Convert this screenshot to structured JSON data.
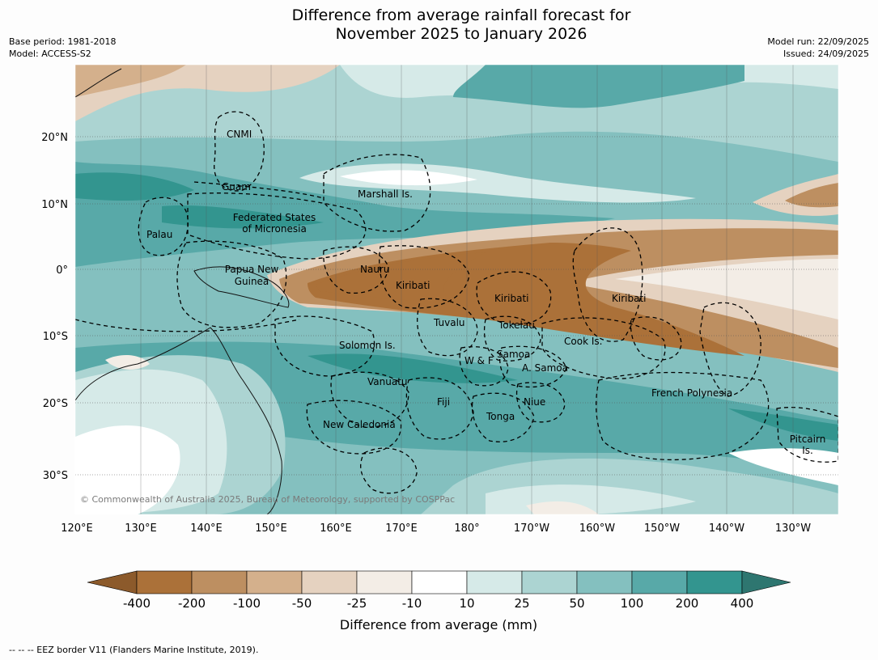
{
  "header": {
    "title_line1": "Difference from average rainfall forecast for",
    "title_line2": "November 2025 to January 2026",
    "base_period": "Base period: 1981-2018",
    "model": "Model: ACCESS-S2",
    "model_run": "Model run: 22/09/2025",
    "issued": "Issued: 24/09/2025"
  },
  "map": {
    "lon_ticks": [
      "120°E",
      "130°E",
      "140°E",
      "150°E",
      "160°E",
      "170°E",
      "180°",
      "170°W",
      "160°W",
      "150°W",
      "140°W",
      "130°W"
    ],
    "lat_ticks": [
      "20°N",
      "10°N",
      "0°",
      "10°S",
      "20°S",
      "30°S"
    ],
    "copyright": "© Commonwealth of Australia 2025, Bureau of Meteorology, supported by COSPPac",
    "places": {
      "cnmi": "CNMI",
      "guam": "Guam",
      "marshall": "Marshall Is.",
      "fsm_line1": "Federated States",
      "fsm_line2": "of Micronesia",
      "palau": "Palau",
      "png_line1": "Papua New",
      "png_line2": "Guinea",
      "nauru": "Nauru",
      "kiribati_west": "Kiribati",
      "kiribati_central": "Kiribati",
      "kiribati_east": "Kiribati",
      "tuvalu": "Tuvalu",
      "tokelau": "Tokelau",
      "cook": "Cook Is.",
      "solomon": "Solomon Is.",
      "wf": "W & F",
      "samoa": "Samoa",
      "asamoa": "A. Samoa",
      "vanuatu": "Vanuatu",
      "fiji": "Fiji",
      "niue": "Niue",
      "tonga": "Tonga",
      "frpoly": "French Polynesia",
      "newcal": "New Caledonia",
      "pitcairn_line1": "Pitcairn",
      "pitcairn_line2": "Is."
    }
  },
  "colorbar": {
    "title": "Difference from average (mm)",
    "labels": [
      "-400",
      "-200",
      "-100",
      "-50",
      "-25",
      "-10",
      "10",
      "25",
      "50",
      "100",
      "200",
      "400"
    ],
    "colors": [
      "#8c5a2b",
      "#ab7139",
      "#bd8f61",
      "#d4b08c",
      "#e5d2c0",
      "#f3ede6",
      "#ffffff",
      "#d6eae8",
      "#acd4d2",
      "#84c0bf",
      "#58a9a8",
      "#33958f",
      "#2e7670"
    ]
  },
  "footer": {
    "legend": "--  --  -- EEZ border V11 (Flanders Marine Institute, 2019)."
  }
}
